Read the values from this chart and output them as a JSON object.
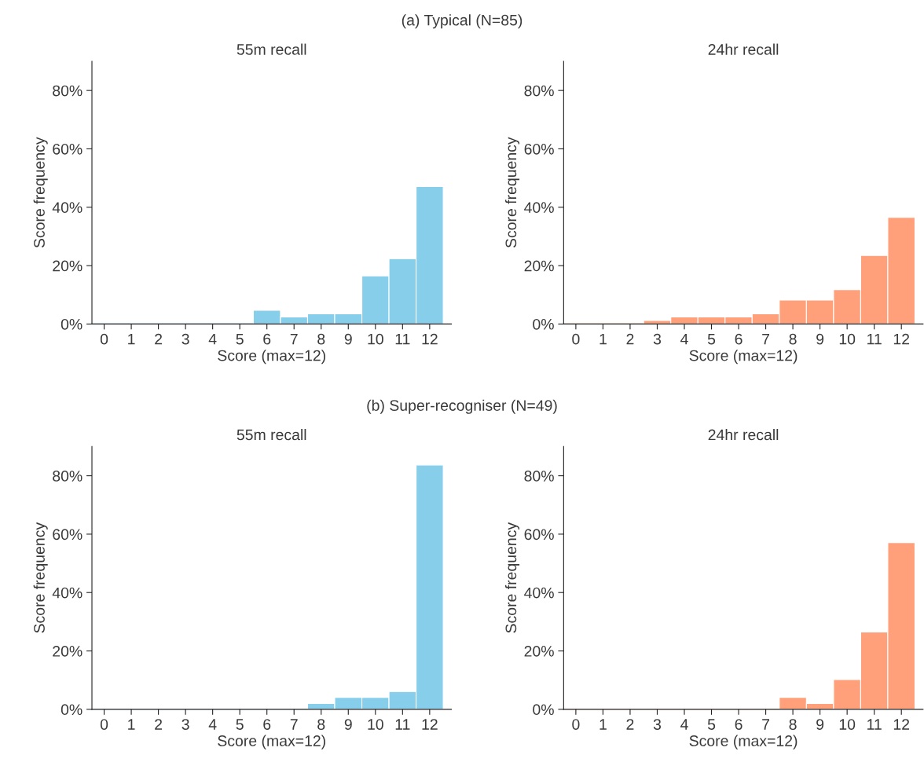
{
  "chart_data": [
    {
      "type": "histogram",
      "subtitle": "(a) Typical (N=85)",
      "title": "55m recall",
      "xlabel": "Score (max=12)",
      "ylabel": "Score frequency",
      "bins": [
        -0.5,
        0.5,
        1.5,
        2.5,
        3.5,
        4.5,
        5.5,
        6.5,
        7.5,
        8.5,
        9.5,
        10.5,
        11.5,
        12.5
      ],
      "values": [
        0,
        0,
        0,
        0,
        0,
        0,
        4.7,
        2.4,
        3.5,
        3.5,
        16.5,
        22.4,
        47.1
      ],
      "color": "#87ceeb",
      "xlim": [
        -0.45,
        12.8
      ],
      "xticks": [
        0,
        1,
        2,
        3,
        4,
        5,
        6,
        7,
        8,
        9,
        10,
        11,
        12
      ],
      "ylim": [
        0,
        90
      ],
      "yticks": [
        {
          "value": 0,
          "label": "0%"
        },
        {
          "value": 20,
          "label": "20%"
        },
        {
          "value": 40,
          "label": "40%"
        },
        {
          "value": 60,
          "label": "60%"
        },
        {
          "value": 80,
          "label": "80%"
        }
      ],
      "grid": false
    },
    {
      "type": "histogram",
      "title": "24hr recall",
      "xlabel": "Score (max=12)",
      "ylabel": "Score frequency",
      "bins": [
        -0.5,
        0.5,
        1.5,
        2.5,
        3.5,
        4.5,
        5.5,
        6.5,
        7.5,
        8.5,
        9.5,
        10.5,
        11.5,
        12.5
      ],
      "values": [
        0,
        0,
        0,
        1.2,
        2.4,
        2.4,
        2.4,
        3.5,
        8.2,
        8.2,
        11.8,
        23.5,
        36.5
      ],
      "color": "#ffa07a",
      "xlim": [
        -0.45,
        12.8
      ],
      "xticks": [
        0,
        1,
        2,
        3,
        4,
        5,
        6,
        7,
        8,
        9,
        10,
        11,
        12
      ],
      "ylim": [
        0,
        90
      ],
      "yticks": [
        {
          "value": 0,
          "label": "0%"
        },
        {
          "value": 20,
          "label": "20%"
        },
        {
          "value": 40,
          "label": "40%"
        },
        {
          "value": 60,
          "label": "60%"
        },
        {
          "value": 80,
          "label": "80%"
        }
      ],
      "grid": false
    },
    {
      "type": "histogram",
      "subtitle": "(b) Super-recogniser (N=49)",
      "title": "55m recall",
      "xlabel": "Score (max=12)",
      "ylabel": "Score frequency",
      "bins": [
        -0.5,
        0.5,
        1.5,
        2.5,
        3.5,
        4.5,
        5.5,
        6.5,
        7.5,
        8.5,
        9.5,
        10.5,
        11.5,
        12.5
      ],
      "values": [
        0,
        0,
        0,
        0,
        0,
        0,
        0,
        0,
        2.0,
        4.1,
        4.1,
        6.1,
        83.7
      ],
      "color": "#87ceeb",
      "xlim": [
        -0.45,
        12.8
      ],
      "xticks": [
        0,
        1,
        2,
        3,
        4,
        5,
        6,
        7,
        8,
        9,
        10,
        11,
        12
      ],
      "ylim": [
        0,
        90
      ],
      "yticks": [
        {
          "value": 0,
          "label": "0%"
        },
        {
          "value": 20,
          "label": "20%"
        },
        {
          "value": 40,
          "label": "40%"
        },
        {
          "value": 60,
          "label": "60%"
        },
        {
          "value": 80,
          "label": "80%"
        }
      ],
      "grid": false
    },
    {
      "type": "histogram",
      "title": "24hr recall",
      "xlabel": "Score (max=12)",
      "ylabel": "Score frequency",
      "bins": [
        -0.5,
        0.5,
        1.5,
        2.5,
        3.5,
        4.5,
        5.5,
        6.5,
        7.5,
        8.5,
        9.5,
        10.5,
        11.5,
        12.5
      ],
      "values": [
        0,
        0,
        0,
        0,
        0,
        0,
        0,
        0,
        4.1,
        2.0,
        10.2,
        26.5,
        57.1
      ],
      "color": "#ffa07a",
      "xlim": [
        -0.45,
        12.8
      ],
      "xticks": [
        0,
        1,
        2,
        3,
        4,
        5,
        6,
        7,
        8,
        9,
        10,
        11,
        12
      ],
      "ylim": [
        0,
        90
      ],
      "yticks": [
        {
          "value": 0,
          "label": "0%"
        },
        {
          "value": 20,
          "label": "20%"
        },
        {
          "value": 40,
          "label": "40%"
        },
        {
          "value": 60,
          "label": "60%"
        },
        {
          "value": 80,
          "label": "80%"
        }
      ],
      "grid": false
    }
  ]
}
